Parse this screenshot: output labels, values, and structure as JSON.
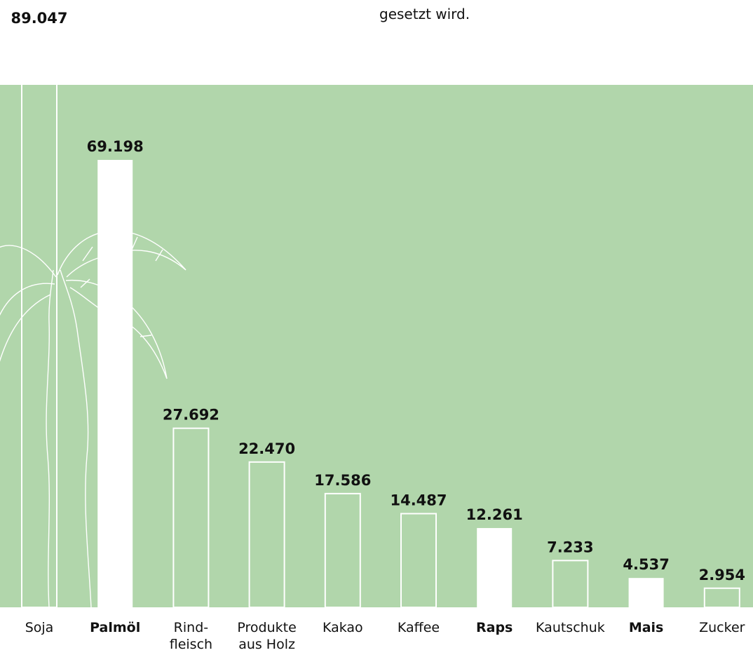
{
  "intro_text": "gesetzt wird.",
  "colors": {
    "panel": "#b1d6ab",
    "bar_fill": "#ffffff",
    "bar_outline": "#ffffff",
    "text": "#111111"
  },
  "chart_data": {
    "type": "bar",
    "categories": [
      {
        "label": [
          "Soja"
        ],
        "bold": false,
        "filled": false
      },
      {
        "label": [
          "Palmöl"
        ],
        "bold": true,
        "filled": true
      },
      {
        "label": [
          "Rind-",
          "fleisch"
        ],
        "bold": false,
        "filled": false
      },
      {
        "label": [
          "Produkte",
          "aus Holz"
        ],
        "bold": false,
        "filled": false
      },
      {
        "label": [
          "Kakao"
        ],
        "bold": false,
        "filled": false
      },
      {
        "label": [
          "Kaffee"
        ],
        "bold": false,
        "filled": false
      },
      {
        "label": [
          "Raps"
        ],
        "bold": true,
        "filled": true
      },
      {
        "label": [
          "Kautschuk"
        ],
        "bold": false,
        "filled": false
      },
      {
        "label": [
          "Mais"
        ],
        "bold": true,
        "filled": true
      },
      {
        "label": [
          "Zucker"
        ],
        "bold": false,
        "filled": false
      }
    ],
    "values": [
      89047,
      69198,
      27692,
      22470,
      17586,
      14487,
      12261,
      7233,
      4537,
      2954
    ],
    "value_labels": [
      "89.047",
      "69.198",
      "27.692",
      "22.470",
      "17.586",
      "14.487",
      "12.261",
      "7.233",
      "4.537",
      "2.954"
    ],
    "ylim": [
      0,
      89047
    ],
    "grid": false,
    "legend": "none",
    "title": "",
    "xlabel": "",
    "ylabel": "",
    "background_motif": "palm-tree-outline"
  }
}
